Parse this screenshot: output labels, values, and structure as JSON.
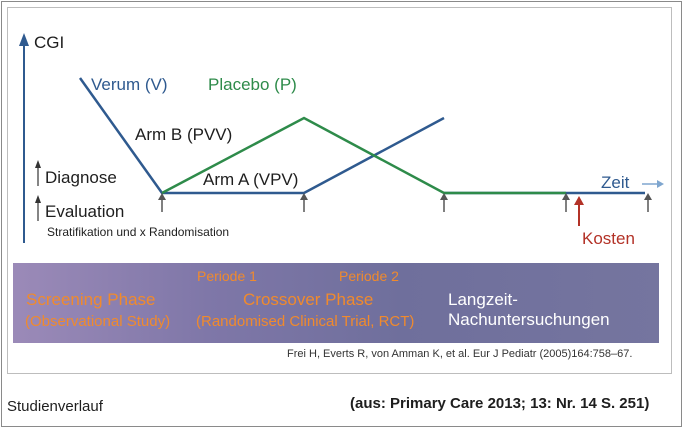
{
  "axis": {
    "y_label": "CGI",
    "x_label": "Zeit"
  },
  "lines": {
    "verum_label": "Verum (V)",
    "placebo_label": "Placebo (P)",
    "arm_b_label": "Arm B (PVV)",
    "arm_a_label": "Arm A (VPV)"
  },
  "markers": {
    "diagnose": "Diagnose",
    "evaluation": "Evaluation",
    "stratification": "Stratifikation und x Randomisation",
    "kosten": "Kosten"
  },
  "phases": {
    "periode1": "Periode 1",
    "periode2": "Periode 2",
    "screening_title": "Screening Phase",
    "screening_sub": "(Observational Study)",
    "crossover_title": "Crossover Phase",
    "crossover_sub": "(Randomised Clinical Trial, RCT)",
    "langzeit_line1": "Langzeit-",
    "langzeit_line2": "Nachuntersuchungen"
  },
  "citation": "Frei H, Everts R, von Amman K, et al. Eur J Pediatr (2005)164:758–67.",
  "caption": "Studienverlauf",
  "source": "(aus: Primary Care 2013; 13: Nr. 14 S. 251)",
  "colors": {
    "verum": "#2f5a8f",
    "placebo": "#2e8b4a",
    "phase_text": "#f08a2d",
    "kosten": "#b33227",
    "band": "#7f77a8"
  }
}
